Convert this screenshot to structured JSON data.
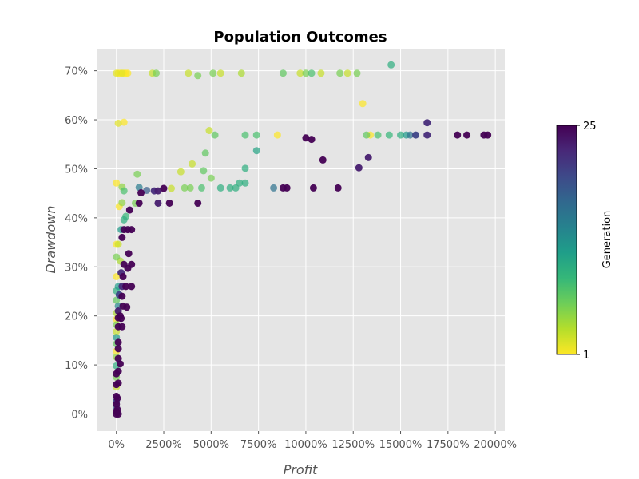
{
  "chart_data": {
    "type": "scatter",
    "title": "Population Outcomes",
    "xlabel": "Profit",
    "ylabel": "Drawdown",
    "xlim": [
      -1000,
      20500
    ],
    "ylim": [
      -3.5,
      74.5
    ],
    "x_ticks": [
      0,
      2500,
      5000,
      7500,
      10000,
      12500,
      15000,
      17500,
      20000
    ],
    "x_tick_labels": [
      "0%",
      "2500%",
      "5000%",
      "7500%",
      "10000%",
      "12500%",
      "15000%",
      "17500%",
      "20000%"
    ],
    "y_ticks": [
      0,
      10,
      20,
      30,
      40,
      50,
      60,
      70
    ],
    "y_tick_labels": [
      "0%",
      "10%",
      "20%",
      "30%",
      "40%",
      "50%",
      "60%",
      "70%"
    ],
    "grid": true,
    "colorbar": {
      "label": "Generation",
      "min": 1,
      "max": 25,
      "min_label": "1",
      "max_label": "25",
      "colormap": "viridis",
      "stops": [
        "#fde725",
        "#b5de2b",
        "#6ece58",
        "#35b779",
        "#1f9e89",
        "#26828e",
        "#31688e",
        "#3e4989",
        "#482878",
        "#440154"
      ]
    },
    "points": [
      {
        "x": 0,
        "y": 69.5,
        "g": 2
      },
      {
        "x": 100,
        "y": 69.5,
        "g": 1
      },
      {
        "x": 200,
        "y": 69.5,
        "g": 1
      },
      {
        "x": 300,
        "y": 69.5,
        "g": 2
      },
      {
        "x": 400,
        "y": 69.5,
        "g": 1
      },
      {
        "x": 500,
        "y": 69.5,
        "g": 1
      },
      {
        "x": 600,
        "y": 69.5,
        "g": 1
      },
      {
        "x": 1900,
        "y": 69.5,
        "g": 3
      },
      {
        "x": 2100,
        "y": 69.5,
        "g": 6
      },
      {
        "x": 3800,
        "y": 69.5,
        "g": 3
      },
      {
        "x": 4300,
        "y": 69.0,
        "g": 6
      },
      {
        "x": 5100,
        "y": 69.5,
        "g": 6
      },
      {
        "x": 5500,
        "y": 69.5,
        "g": 3
      },
      {
        "x": 6600,
        "y": 69.5,
        "g": 4
      },
      {
        "x": 8800,
        "y": 69.5,
        "g": 7
      },
      {
        "x": 9700,
        "y": 69.5,
        "g": 3
      },
      {
        "x": 10000,
        "y": 69.5,
        "g": 6
      },
      {
        "x": 10300,
        "y": 69.5,
        "g": 8
      },
      {
        "x": 10800,
        "y": 69.5,
        "g": 3
      },
      {
        "x": 11800,
        "y": 69.5,
        "g": 6
      },
      {
        "x": 12200,
        "y": 69.5,
        "g": 3
      },
      {
        "x": 12700,
        "y": 69.5,
        "g": 6
      },
      {
        "x": 14500,
        "y": 71.2,
        "g": 10
      },
      {
        "x": 100,
        "y": 59.3,
        "g": 2
      },
      {
        "x": 400,
        "y": 59.5,
        "g": 1
      },
      {
        "x": 13000,
        "y": 63.3,
        "g": 1
      },
      {
        "x": 4900,
        "y": 57.8,
        "g": 3
      },
      {
        "x": 5200,
        "y": 56.9,
        "g": 7
      },
      {
        "x": 6800,
        "y": 56.9,
        "g": 8
      },
      {
        "x": 7400,
        "y": 56.9,
        "g": 8
      },
      {
        "x": 8500,
        "y": 56.9,
        "g": 1
      },
      {
        "x": 13200,
        "y": 56.9,
        "g": 7
      },
      {
        "x": 13400,
        "y": 56.9,
        "g": 1
      },
      {
        "x": 13800,
        "y": 56.9,
        "g": 8
      },
      {
        "x": 14400,
        "y": 56.9,
        "g": 9
      },
      {
        "x": 15000,
        "y": 56.9,
        "g": 10
      },
      {
        "x": 15300,
        "y": 56.9,
        "g": 12
      },
      {
        "x": 15500,
        "y": 56.9,
        "g": 16
      },
      {
        "x": 15800,
        "y": 56.9,
        "g": 20
      },
      {
        "x": 16400,
        "y": 56.9,
        "g": 22
      },
      {
        "x": 18000,
        "y": 56.9,
        "g": 25
      },
      {
        "x": 18500,
        "y": 56.9,
        "g": 25
      },
      {
        "x": 19400,
        "y": 56.9,
        "g": 25
      },
      {
        "x": 19600,
        "y": 56.9,
        "g": 25
      },
      {
        "x": 16400,
        "y": 59.4,
        "g": 22
      },
      {
        "x": 10000,
        "y": 56.3,
        "g": 25
      },
      {
        "x": 10300,
        "y": 56.0,
        "g": 25
      },
      {
        "x": 7400,
        "y": 53.7,
        "g": 11
      },
      {
        "x": 4700,
        "y": 53.2,
        "g": 7
      },
      {
        "x": 4000,
        "y": 51.0,
        "g": 3
      },
      {
        "x": 10900,
        "y": 51.8,
        "g": 25
      },
      {
        "x": 13300,
        "y": 52.3,
        "g": 23
      },
      {
        "x": 12800,
        "y": 50.2,
        "g": 23
      },
      {
        "x": 6800,
        "y": 50.1,
        "g": 10
      },
      {
        "x": 3400,
        "y": 49.4,
        "g": 3
      },
      {
        "x": 4600,
        "y": 49.6,
        "g": 7
      },
      {
        "x": 1100,
        "y": 48.9,
        "g": 6
      },
      {
        "x": 5000,
        "y": 48.1,
        "g": 6
      },
      {
        "x": 0,
        "y": 47.1,
        "g": 1
      },
      {
        "x": 300,
        "y": 46.3,
        "g": 5
      },
      {
        "x": 1200,
        "y": 46.2,
        "g": 15
      },
      {
        "x": 1600,
        "y": 45.6,
        "g": 18
      },
      {
        "x": 2000,
        "y": 45.5,
        "g": 22
      },
      {
        "x": 2200,
        "y": 45.5,
        "g": 23
      },
      {
        "x": 2500,
        "y": 46.0,
        "g": 25
      },
      {
        "x": 2900,
        "y": 46.0,
        "g": 3
      },
      {
        "x": 3600,
        "y": 46.1,
        "g": 6
      },
      {
        "x": 3900,
        "y": 46.1,
        "g": 6
      },
      {
        "x": 4500,
        "y": 46.1,
        "g": 8
      },
      {
        "x": 5500,
        "y": 46.1,
        "g": 10
      },
      {
        "x": 6000,
        "y": 46.1,
        "g": 10
      },
      {
        "x": 6300,
        "y": 46.1,
        "g": 10
      },
      {
        "x": 6500,
        "y": 47.1,
        "g": 10
      },
      {
        "x": 6800,
        "y": 47.1,
        "g": 10
      },
      {
        "x": 8300,
        "y": 46.1,
        "g": 16
      },
      {
        "x": 8800,
        "y": 46.1,
        "g": 25
      },
      {
        "x": 9000,
        "y": 46.1,
        "g": 25
      },
      {
        "x": 10400,
        "y": 46.1,
        "g": 25
      },
      {
        "x": 11700,
        "y": 46.1,
        "g": 25
      },
      {
        "x": 1300,
        "y": 45.1,
        "g": 25
      },
      {
        "x": 400,
        "y": 45.5,
        "g": 8
      },
      {
        "x": 150,
        "y": 42.3,
        "g": 1
      },
      {
        "x": 300,
        "y": 43.1,
        "g": 5
      },
      {
        "x": 1000,
        "y": 43.0,
        "g": 6
      },
      {
        "x": 1200,
        "y": 43.0,
        "g": 25
      },
      {
        "x": 2200,
        "y": 43.0,
        "g": 23
      },
      {
        "x": 2800,
        "y": 43.0,
        "g": 25
      },
      {
        "x": 4300,
        "y": 43.0,
        "g": 25
      },
      {
        "x": 700,
        "y": 41.6,
        "g": 25
      },
      {
        "x": 500,
        "y": 40.3,
        "g": 9
      },
      {
        "x": 400,
        "y": 39.6,
        "g": 10
      },
      {
        "x": 250,
        "y": 37.6,
        "g": 12
      },
      {
        "x": 400,
        "y": 37.6,
        "g": 25
      },
      {
        "x": 600,
        "y": 37.6,
        "g": 25
      },
      {
        "x": 800,
        "y": 37.6,
        "g": 25
      },
      {
        "x": 300,
        "y": 36.0,
        "g": 25
      },
      {
        "x": 0,
        "y": 34.6,
        "g": 1
      },
      {
        "x": 100,
        "y": 34.6,
        "g": 3
      },
      {
        "x": 650,
        "y": 32.7,
        "g": 25
      },
      {
        "x": 0,
        "y": 32.0,
        "g": 6
      },
      {
        "x": 200,
        "y": 31.2,
        "g": 4
      },
      {
        "x": 400,
        "y": 30.5,
        "g": 25
      },
      {
        "x": 800,
        "y": 30.5,
        "g": 25
      },
      {
        "x": 600,
        "y": 29.7,
        "g": 25
      },
      {
        "x": 250,
        "y": 28.8,
        "g": 22
      },
      {
        "x": 0,
        "y": 28.0,
        "g": 1
      },
      {
        "x": 350,
        "y": 28.0,
        "g": 25
      },
      {
        "x": 100,
        "y": 26.0,
        "g": 12
      },
      {
        "x": 300,
        "y": 26.0,
        "g": 22
      },
      {
        "x": 500,
        "y": 26.0,
        "g": 25
      },
      {
        "x": 800,
        "y": 26.0,
        "g": 25
      },
      {
        "x": 0,
        "y": 25.1,
        "g": 10
      },
      {
        "x": 150,
        "y": 24.3,
        "g": 20
      },
      {
        "x": 300,
        "y": 24.0,
        "g": 25
      },
      {
        "x": 0,
        "y": 23.2,
        "g": 7
      },
      {
        "x": 100,
        "y": 22.0,
        "g": 14
      },
      {
        "x": 350,
        "y": 22.0,
        "g": 25
      },
      {
        "x": 550,
        "y": 21.8,
        "g": 25
      },
      {
        "x": 100,
        "y": 21.0,
        "g": 23
      },
      {
        "x": 0,
        "y": 20.6,
        "g": 4
      },
      {
        "x": 200,
        "y": 20.0,
        "g": 25
      },
      {
        "x": 100,
        "y": 19.6,
        "g": 25
      },
      {
        "x": 0,
        "y": 19.3,
        "g": 1
      },
      {
        "x": 250,
        "y": 19.5,
        "g": 25
      },
      {
        "x": 0,
        "y": 18.2,
        "g": 6
      },
      {
        "x": 100,
        "y": 17.8,
        "g": 25
      },
      {
        "x": 300,
        "y": 17.8,
        "g": 25
      },
      {
        "x": 0,
        "y": 16.8,
        "g": 3
      },
      {
        "x": 0,
        "y": 15.6,
        "g": 12
      },
      {
        "x": 100,
        "y": 14.6,
        "g": 25
      },
      {
        "x": 0,
        "y": 14.3,
        "g": 7
      },
      {
        "x": 100,
        "y": 13.3,
        "g": 25
      },
      {
        "x": 0,
        "y": 12.8,
        "g": 1
      },
      {
        "x": 0,
        "y": 11.6,
        "g": 5
      },
      {
        "x": 100,
        "y": 11.3,
        "g": 25
      },
      {
        "x": 200,
        "y": 10.2,
        "g": 25
      },
      {
        "x": 0,
        "y": 9.8,
        "g": 10
      },
      {
        "x": 100,
        "y": 8.7,
        "g": 25
      },
      {
        "x": 0,
        "y": 8.2,
        "g": 25
      },
      {
        "x": 0,
        "y": 7.5,
        "g": 6
      },
      {
        "x": 100,
        "y": 6.3,
        "g": 25
      },
      {
        "x": 0,
        "y": 6.0,
        "g": 25
      },
      {
        "x": 0,
        "y": 5.5,
        "g": 3
      },
      {
        "x": 0,
        "y": 3.6,
        "g": 25
      },
      {
        "x": 50,
        "y": 3.2,
        "g": 25
      },
      {
        "x": 0,
        "y": 2.6,
        "g": 20
      },
      {
        "x": 0,
        "y": 2.0,
        "g": 25
      },
      {
        "x": 0,
        "y": 1.4,
        "g": 18
      },
      {
        "x": 50,
        "y": 0.9,
        "g": 25
      },
      {
        "x": 0,
        "y": 0.5,
        "g": 25
      },
      {
        "x": 0,
        "y": 0.0,
        "g": 25
      },
      {
        "x": 100,
        "y": 0.0,
        "g": 25
      }
    ]
  }
}
